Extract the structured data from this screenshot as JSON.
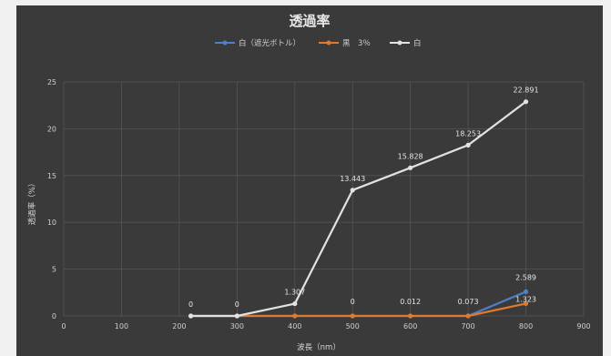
{
  "chart_data": {
    "type": "scatter",
    "title": "透過率",
    "xlabel": "波長（nm）",
    "ylabel": "透過率（%）",
    "xlim": [
      0,
      900
    ],
    "ylim": [
      0,
      25
    ],
    "xticks": [
      0,
      100,
      200,
      300,
      400,
      500,
      600,
      700,
      800,
      900
    ],
    "yticks": [
      0,
      5,
      10,
      15,
      20,
      25
    ],
    "grid": true,
    "legend_position": "top",
    "x": [
      220,
      300,
      400,
      500,
      600,
      700,
      800
    ],
    "series": [
      {
        "name": "白（遮光ボトル）",
        "color": "#4f7fc4",
        "values": [
          0,
          0,
          0,
          0,
          0,
          0,
          2.589
        ],
        "labels": [
          "",
          "",
          "",
          "",
          "",
          "",
          "2.589"
        ]
      },
      {
        "name": "黒　3％",
        "color": "#e07a2c",
        "values": [
          0,
          0,
          0,
          0,
          0,
          0,
          1.323
        ],
        "labels": [
          "",
          "",
          "",
          "",
          "",
          "",
          "1.323"
        ]
      },
      {
        "name": "白",
        "color": "#e2e2e2",
        "values": [
          0,
          0,
          1.307,
          13.443,
          15.828,
          18.253,
          22.891
        ],
        "labels": [
          "0",
          "0",
          "1.307",
          "13.443",
          "15.828",
          "18.253",
          "22.891"
        ]
      }
    ],
    "extra_labels": [
      {
        "x": 500,
        "y": 0,
        "text": "0"
      },
      {
        "x": 600,
        "y": 0,
        "text": "0.012"
      },
      {
        "x": 700,
        "y": 0,
        "text": "0.073"
      }
    ]
  }
}
